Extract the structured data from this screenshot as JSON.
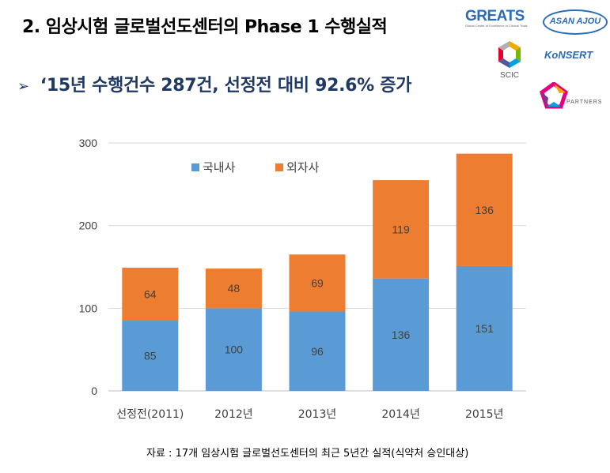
{
  "header": {
    "title": "2. 임상시험 글로벌선도센터의 Phase 1 수행실적",
    "subtitle_arrow": "➢",
    "subtitle": "‘15년 수행건수 287건, 선정전 대비 92.6% 증가"
  },
  "logos": {
    "greats": "GREATS",
    "greats_sub": "Global Center of Excellence in Clinical Trials",
    "asan_ajou": "ASAN AJOU",
    "scic": "SCIC",
    "konsert": "KoNSERT",
    "partners": "PARTNERS"
  },
  "chart_data": {
    "type": "bar",
    "stacked": true,
    "categories": [
      "선정전(2011)",
      "2012년",
      "2013년",
      "2014년",
      "2015년"
    ],
    "series": [
      {
        "name": "국내사",
        "values": [
          85,
          100,
          96,
          136,
          151
        ],
        "color": "#5b9bd5"
      },
      {
        "name": "외자사",
        "values": [
          64,
          48,
          69,
          119,
          136
        ],
        "color": "#ed7d31"
      }
    ],
    "ylim": [
      0,
      300
    ],
    "yticks": [
      0,
      100,
      200,
      300
    ],
    "grid": true,
    "legend": "top-left",
    "data_labels": true
  },
  "footer": {
    "source": "자료 : 17개 임상시험 글로벌선도센터의 최근 5년간 실적(식약처 승인대상)"
  }
}
